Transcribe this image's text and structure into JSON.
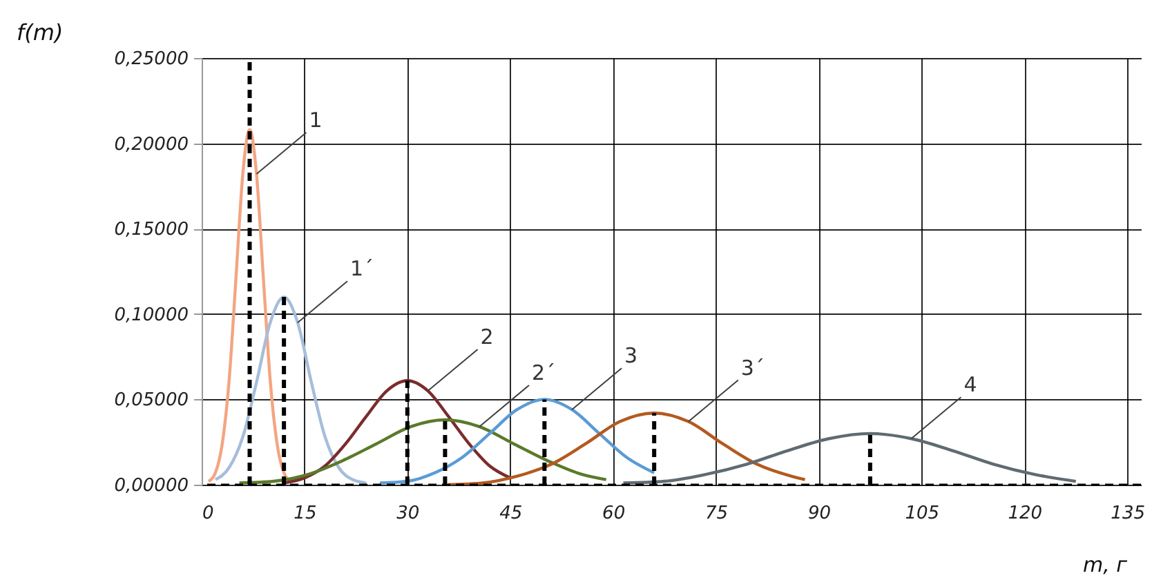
{
  "chart_data": {
    "type": "line",
    "xlabel": "m, г",
    "ylabel": "f(m)",
    "xlim": [
      0,
      137
    ],
    "xticks": [
      0,
      15,
      30,
      45,
      60,
      75,
      90,
      105,
      120,
      135
    ],
    "ylim": [
      0,
      0.25
    ],
    "yticks": [
      {
        "value": 0,
        "label": "0,00000"
      },
      {
        "value": 0.05,
        "label": "0,05000"
      },
      {
        "value": 0.1,
        "label": "0,10000"
      },
      {
        "value": 0.15,
        "label": "0,15000"
      },
      {
        "value": 0.2,
        "label": "0,20000"
      },
      {
        "value": 0.25,
        "label": "0,25000"
      }
    ],
    "grid": true,
    "ref_lines": [
      {
        "axis": "y",
        "value": 0,
        "color": "#000000",
        "line_style": "dashed"
      }
    ],
    "series": [
      {
        "type": "line",
        "color": "#f4a582",
        "x": [
          1,
          2,
          3,
          4,
          5,
          6,
          7,
          8,
          9,
          10,
          11,
          12,
          13
        ],
        "values": [
          0.002,
          0.007,
          0.024,
          0.061,
          0.121,
          0.182,
          0.208,
          0.182,
          0.121,
          0.061,
          0.024,
          0.007,
          0.002
        ]
      },
      {
        "type": "line",
        "color": "#a6bddb",
        "x": [
          2,
          4,
          6,
          8,
          10,
          12,
          14,
          16,
          18,
          20,
          22,
          24
        ],
        "values": [
          0.003,
          0.01,
          0.028,
          0.06,
          0.095,
          0.11,
          0.095,
          0.06,
          0.028,
          0.01,
          0.003,
          0.001
        ]
      },
      {
        "type": "line",
        "color": "#7b2c2c",
        "x": [
          12,
          15,
          18,
          21,
          24,
          27,
          30,
          33,
          36,
          39,
          42,
          45
        ],
        "values": [
          0.001,
          0.004,
          0.011,
          0.024,
          0.04,
          0.055,
          0.061,
          0.055,
          0.04,
          0.024,
          0.011,
          0.004
        ]
      },
      {
        "type": "line",
        "color": "#5a7a2a",
        "x": [
          5.5,
          10.5,
          15.5,
          20.5,
          25.5,
          30.5,
          35.5,
          40.5,
          45.5,
          50.5,
          55.5,
          59
        ],
        "values": [
          0.001,
          0.002,
          0.006,
          0.014,
          0.024,
          0.034,
          0.038,
          0.034,
          0.024,
          0.014,
          0.006,
          0.003
        ]
      },
      {
        "type": "line",
        "color": "#5b9bd5",
        "x": [
          26,
          30,
          34,
          38,
          42,
          46,
          50,
          54,
          58,
          62,
          66
        ],
        "values": [
          0.001,
          0.002,
          0.007,
          0.016,
          0.03,
          0.044,
          0.05,
          0.044,
          0.03,
          0.016,
          0.007
        ]
      },
      {
        "type": "line",
        "color": "#b35a1f",
        "x": [
          36,
          41,
          46,
          51,
          56,
          61,
          66,
          71,
          76,
          81,
          86,
          88
        ],
        "values": [
          0.0,
          0.001,
          0.005,
          0.012,
          0.024,
          0.037,
          0.042,
          0.037,
          0.024,
          0.012,
          0.005,
          0.003
        ]
      },
      {
        "type": "line",
        "color": "#5f6b73",
        "x": [
          61.5,
          67.5,
          73.5,
          79.5,
          85.5,
          91.5,
          97.5,
          103.5,
          109.5,
          115.5,
          121.5,
          127.5
        ],
        "values": [
          0.001,
          0.002,
          0.006,
          0.012,
          0.02,
          0.027,
          0.03,
          0.027,
          0.02,
          0.012,
          0.006,
          0.002
        ]
      },
      {
        "type": "line",
        "color": "#000000",
        "line_style": "dashed",
        "x": [
          7,
          7
        ],
        "values": [
          0,
          0.25
        ]
      },
      {
        "type": "line",
        "color": "#000000",
        "line_style": "dashed",
        "x": [
          12,
          12
        ],
        "values": [
          0,
          0.11
        ]
      },
      {
        "type": "line",
        "color": "#000000",
        "line_style": "dashed",
        "x": [
          30,
          30
        ],
        "values": [
          0,
          0.061
        ]
      },
      {
        "type": "line",
        "color": "#000000",
        "line_style": "dashed",
        "x": [
          35.5,
          35.5
        ],
        "values": [
          0,
          0.038
        ]
      },
      {
        "type": "line",
        "color": "#000000",
        "line_style": "dashed",
        "x": [
          50,
          50
        ],
        "values": [
          0,
          0.05
        ]
      },
      {
        "type": "line",
        "color": "#000000",
        "line_style": "dashed",
        "x": [
          66,
          66
        ],
        "values": [
          0,
          0.042
        ]
      },
      {
        "type": "line",
        "color": "#000000",
        "line_style": "dashed",
        "x": [
          97.5,
          97.5
        ],
        "values": [
          0,
          0.03
        ]
      }
    ],
    "annotations": [
      {
        "text": "1",
        "x": 8,
        "y": 0.182
      },
      {
        "text": "1´",
        "x": 14,
        "y": 0.095
      },
      {
        "text": "2",
        "x": 33,
        "y": 0.055
      },
      {
        "text": "2´",
        "x": 40.5,
        "y": 0.034
      },
      {
        "text": "3",
        "x": 54,
        "y": 0.044
      },
      {
        "text": "3´",
        "x": 71,
        "y": 0.037
      },
      {
        "text": "4",
        "x": 103.5,
        "y": 0.027
      }
    ]
  }
}
